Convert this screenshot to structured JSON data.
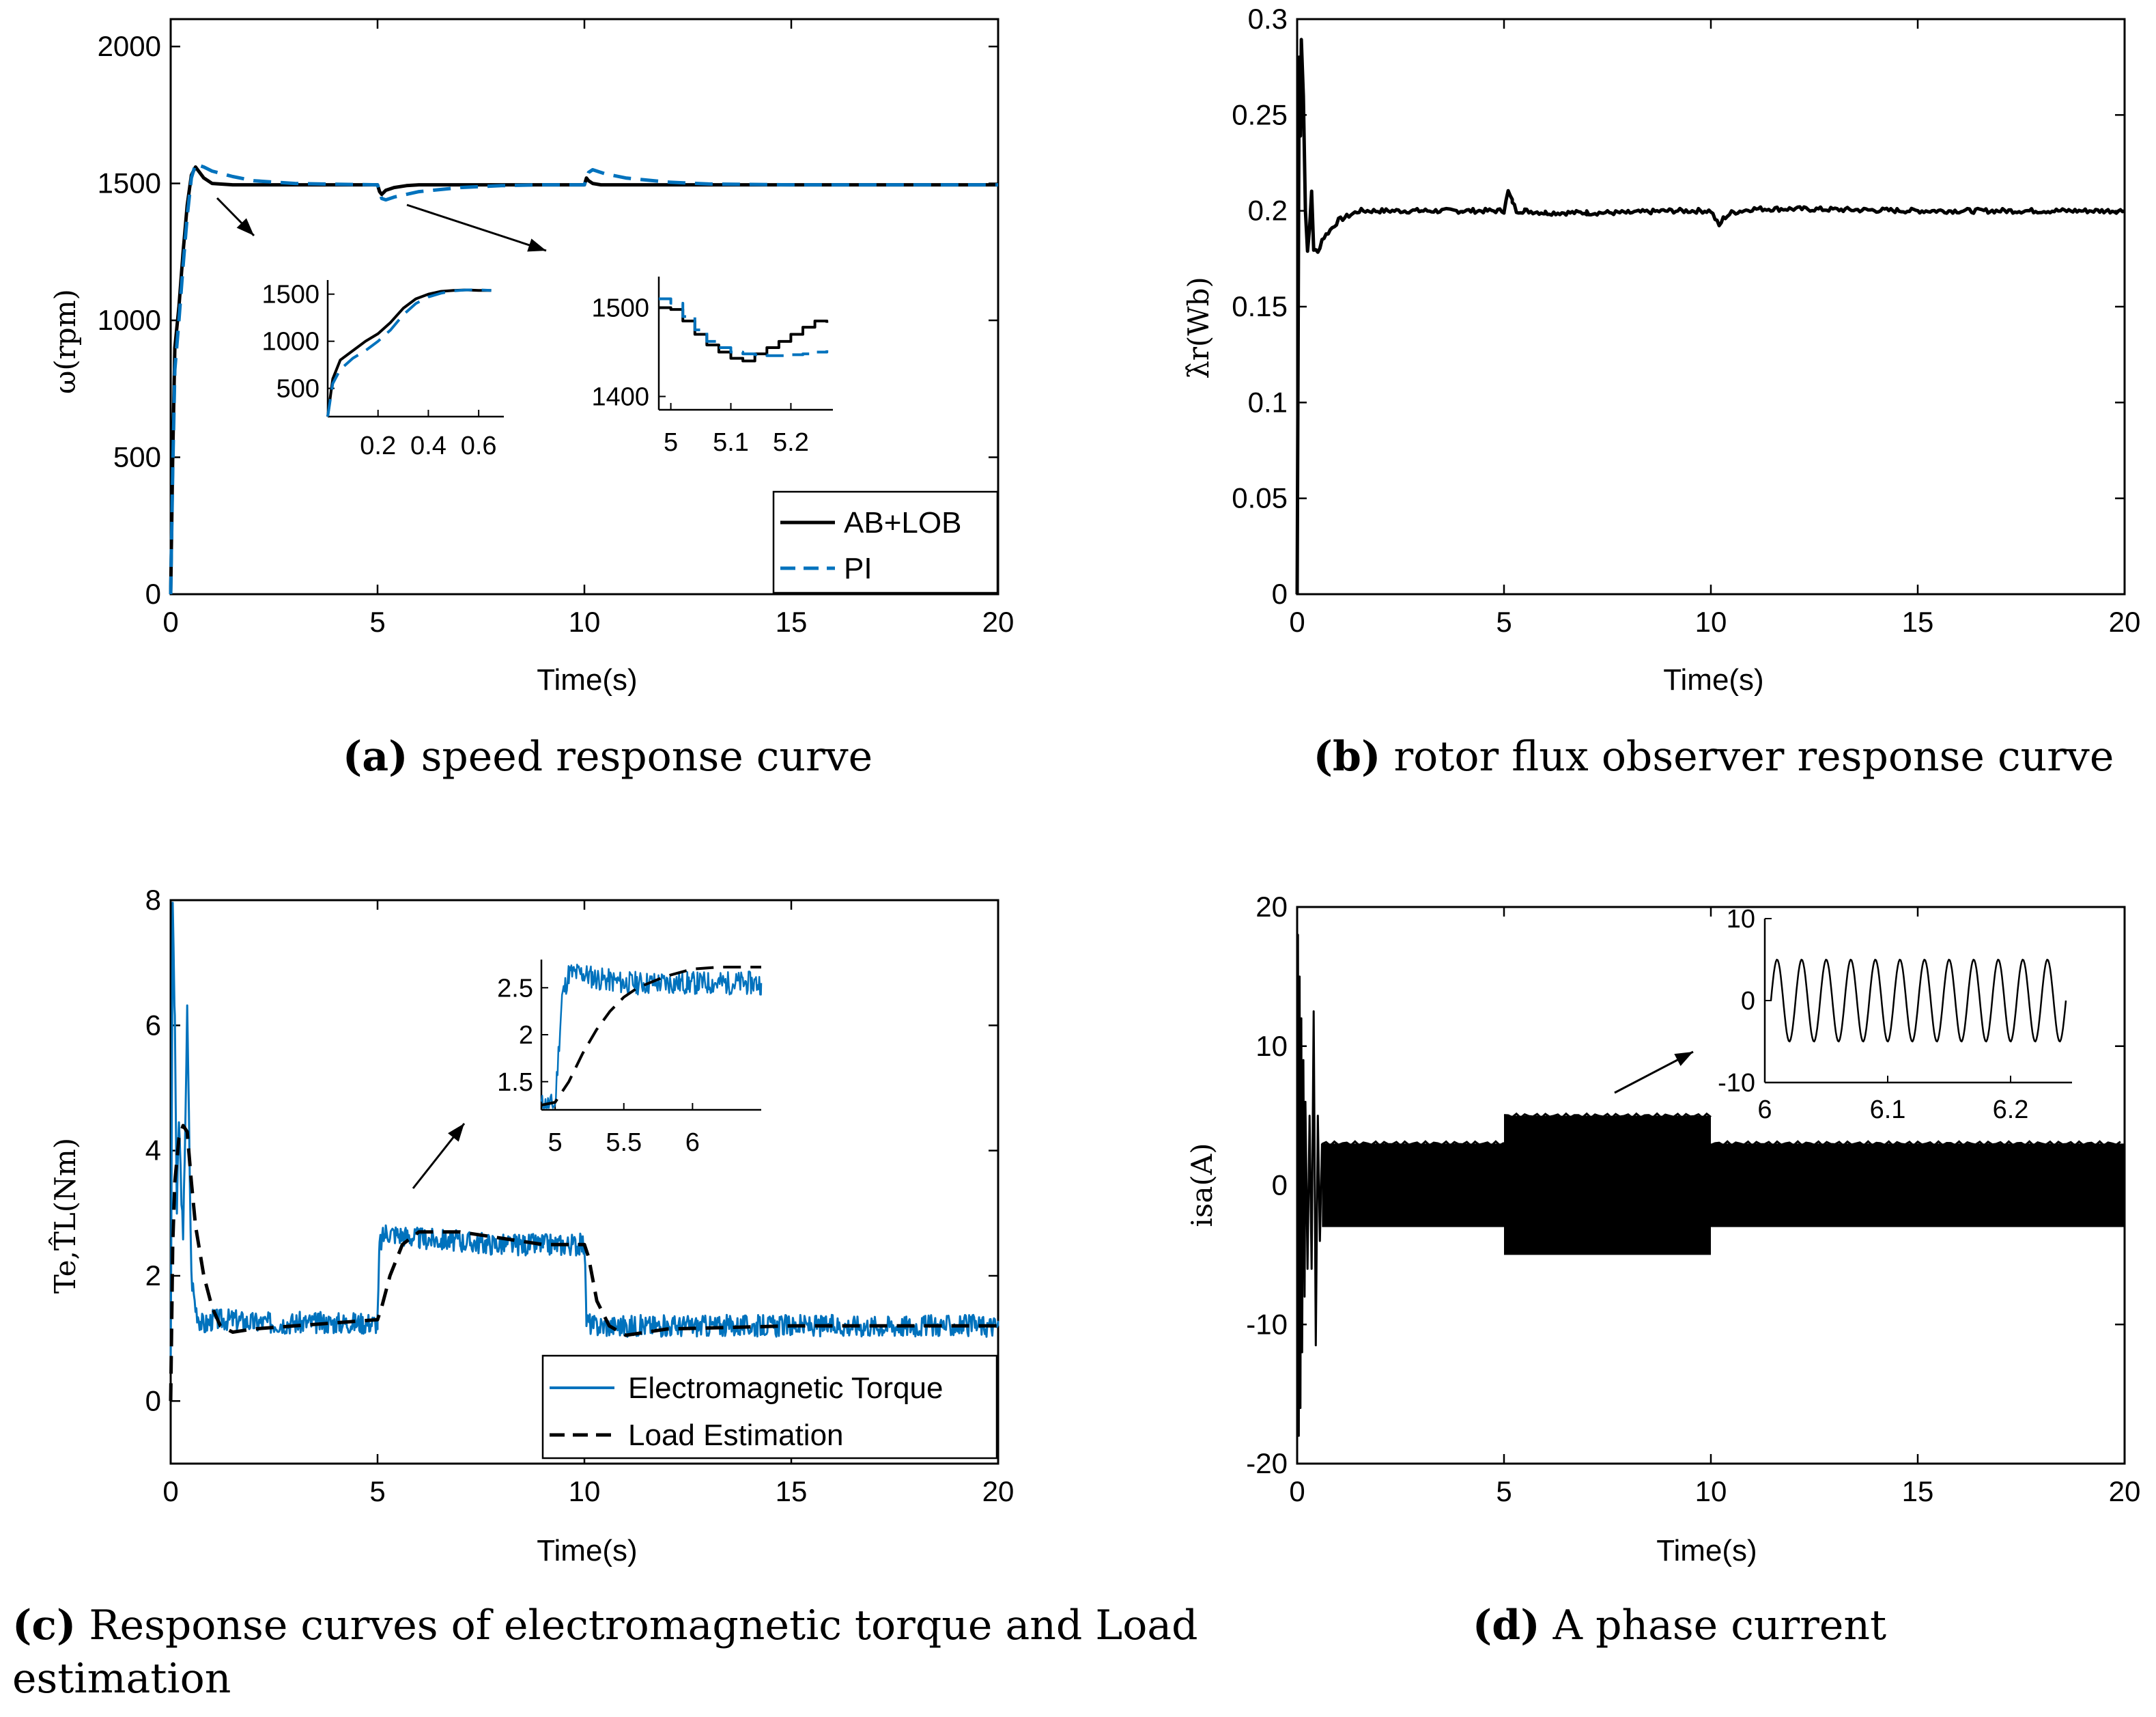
{
  "colors": {
    "black": "#000000",
    "blue": "#0072bd"
  },
  "chart_data": [
    {
      "id": "a",
      "type": "line",
      "caption_letter": "(a)",
      "caption": " speed response curve",
      "xlabel": "Time(s)",
      "ylabel": "ω(rpm)",
      "xlim": [
        0,
        20
      ],
      "ylim": [
        0,
        2100
      ],
      "xticks": [
        "0",
        "5",
        "10",
        "15",
        "20"
      ],
      "yticks": [
        "0",
        "500",
        "1000",
        "1500",
        "2000"
      ],
      "series": [
        {
          "name": "AB+LOB",
          "color": "#000000",
          "dash": "solid",
          "x": [
            0,
            0.05,
            0.1,
            0.2,
            0.3,
            0.4,
            0.5,
            0.6,
            0.8,
            1,
            1.5,
            2,
            3,
            4,
            5,
            5.05,
            5.1,
            5.2,
            5.4,
            5.7,
            6,
            7,
            8,
            10,
            10.05,
            10.1,
            10.2,
            10.4,
            10.7,
            11,
            12,
            15,
            20
          ],
          "y": [
            0,
            500,
            900,
            1050,
            1250,
            1420,
            1530,
            1560,
            1520,
            1500,
            1495,
            1495,
            1495,
            1495,
            1495,
            1470,
            1460,
            1475,
            1485,
            1492,
            1495,
            1495,
            1495,
            1495,
            1520,
            1510,
            1500,
            1495,
            1495,
            1495,
            1495,
            1495,
            1495
          ]
        },
        {
          "name": "PI",
          "color": "#0072bd",
          "dash": "dashed",
          "x": [
            0,
            0.05,
            0.1,
            0.2,
            0.3,
            0.4,
            0.5,
            0.6,
            0.8,
            1,
            1.5,
            2,
            3,
            4,
            5,
            5.1,
            5.2,
            5.4,
            6,
            7,
            8,
            9,
            10,
            10.1,
            10.2,
            10.5,
            11,
            12,
            13,
            15,
            20
          ],
          "y": [
            0,
            450,
            820,
            1000,
            1200,
            1380,
            1520,
            1570,
            1560,
            1545,
            1525,
            1510,
            1500,
            1497,
            1495,
            1445,
            1440,
            1450,
            1470,
            1485,
            1492,
            1495,
            1495,
            1540,
            1550,
            1535,
            1520,
            1505,
            1498,
            1495,
            1495
          ]
        }
      ],
      "inset1": {
        "xlim": [
          0,
          0.7
        ],
        "ylim": [
          200,
          1650
        ],
        "xticks": [
          "0.2",
          "0.4",
          "0.6"
        ],
        "yticks": [
          "500",
          "1000",
          "1500"
        ],
        "series": [
          {
            "name": "AB+LOB",
            "x": [
              0,
              0.02,
              0.05,
              0.1,
              0.15,
              0.2,
              0.25,
              0.3,
              0.35,
              0.4,
              0.45,
              0.5,
              0.55,
              0.6,
              0.65
            ],
            "y": [
              200,
              600,
              800,
              900,
              1000,
              1080,
              1200,
              1350,
              1450,
              1500,
              1530,
              1540,
              1545,
              1540,
              1540
            ]
          },
          {
            "name": "PI",
            "x": [
              0,
              0.02,
              0.05,
              0.1,
              0.15,
              0.2,
              0.25,
              0.3,
              0.35,
              0.4,
              0.45,
              0.5,
              0.55,
              0.6,
              0.65
            ],
            "y": [
              200,
              550,
              700,
              820,
              900,
              1000,
              1120,
              1280,
              1400,
              1470,
              1510,
              1535,
              1545,
              1545,
              1540
            ]
          }
        ]
      },
      "inset2": {
        "xlim": [
          4.98,
          5.27
        ],
        "ylim": [
          1385,
          1535
        ],
        "xticks": [
          "5",
          "5.1",
          "5.2"
        ],
        "yticks": [
          "1400",
          "1500"
        ],
        "series": [
          {
            "name": "AB+LOB",
            "x": [
              4.98,
              5,
              5.02,
              5.04,
              5.06,
              5.08,
              5.1,
              5.12,
              5.14,
              5.16,
              5.18,
              5.2,
              5.22,
              5.24,
              5.26
            ],
            "y": [
              1500,
              1498,
              1485,
              1470,
              1458,
              1450,
              1443,
              1440,
              1448,
              1455,
              1462,
              1470,
              1478,
              1485,
              1483
            ]
          },
          {
            "name": "PI",
            "x": [
              4.98,
              5,
              5.02,
              5.04,
              5.06,
              5.08,
              5.1,
              5.12,
              5.14,
              5.16,
              5.18,
              5.2,
              5.22,
              5.24,
              5.26
            ],
            "y": [
              1510,
              1505,
              1490,
              1475,
              1462,
              1455,
              1450,
              1448,
              1447,
              1446,
              1446,
              1447,
              1448,
              1450,
              1452
            ]
          }
        ]
      },
      "legend": [
        "AB+LOB",
        "PI"
      ]
    },
    {
      "id": "b",
      "type": "line",
      "caption_letter": "(b)",
      "caption": " rotor flux observer response curve",
      "xlabel": "Time(s)",
      "ylabel": "λ̂r(Wb)",
      "xlim": [
        0,
        20
      ],
      "ylim": [
        0,
        0.3
      ],
      "xticks": [
        "0",
        "5",
        "10",
        "15",
        "20"
      ],
      "yticks": [
        "0",
        "0.05",
        "0.1",
        "0.15",
        "0.2",
        "0.25",
        "0.3"
      ],
      "series": [
        {
          "name": "rotor flux",
          "color": "#000000",
          "x": [
            0,
            0.05,
            0.08,
            0.1,
            0.15,
            0.2,
            0.25,
            0.3,
            0.35,
            0.4,
            0.5,
            0.6,
            0.8,
            1,
            1.5,
            2,
            3,
            4,
            5,
            5.1,
            5.2,
            5.3,
            5.5,
            6,
            7,
            8,
            9,
            10,
            10.1,
            10.2,
            10.3,
            10.5,
            11,
            12,
            15,
            20
          ],
          "y": [
            0,
            0.28,
            0.24,
            0.29,
            0.26,
            0.2,
            0.18,
            0.19,
            0.21,
            0.18,
            0.178,
            0.185,
            0.19,
            0.195,
            0.2,
            0.2,
            0.2,
            0.2,
            0.2,
            0.21,
            0.205,
            0.2,
            0.2,
            0.199,
            0.199,
            0.199,
            0.2,
            0.2,
            0.196,
            0.192,
            0.196,
            0.199,
            0.201,
            0.201,
            0.2,
            0.2
          ]
        }
      ]
    },
    {
      "id": "c",
      "type": "line",
      "caption_letter": "(c)",
      "caption": " Response curves of electromagnetic torque and Load estimation",
      "xlabel": "Time(s)",
      "ylabel": "Te,T̂L(Nm)",
      "xlim": [
        0,
        20
      ],
      "ylim": [
        -1,
        8
      ],
      "xticks": [
        "0",
        "5",
        "10",
        "15",
        "20"
      ],
      "yticks": [
        "0",
        "2",
        "4",
        "6",
        "8"
      ],
      "series": [
        {
          "name": "Electromagnetic Torque",
          "color": "#0072bd",
          "dash": "solid",
          "x": [
            0,
            0.05,
            0.1,
            0.15,
            0.2,
            0.3,
            0.4,
            0.5,
            0.6,
            0.7,
            0.8,
            1,
            1.5,
            2,
            3,
            4,
            5,
            5.05,
            5.2,
            6,
            7,
            8,
            9,
            10,
            10.05,
            10.2,
            11,
            12,
            15,
            20
          ],
          "y": [
            0.5,
            8,
            6,
            3,
            4.5,
            2.5,
            6.2,
            2,
            1.5,
            1.3,
            1.2,
            1.3,
            1.3,
            1.25,
            1.25,
            1.25,
            1.25,
            2.5,
            2.7,
            2.6,
            2.55,
            2.5,
            2.5,
            2.5,
            1.3,
            1.2,
            1.2,
            1.2,
            1.2,
            1.2
          ]
        },
        {
          "name": "Load Estimation",
          "color": "#000000",
          "dash": "dashed",
          "x": [
            0,
            0.05,
            0.1,
            0.2,
            0.3,
            0.4,
            0.5,
            0.6,
            0.8,
            1,
            1.2,
            1.5,
            2,
            3,
            4,
            5,
            5.1,
            5.3,
            5.6,
            6,
            7,
            8,
            9,
            10,
            10.1,
            10.3,
            10.6,
            11,
            12,
            15,
            20
          ],
          "y": [
            0,
            2.5,
            3.5,
            4.2,
            4.4,
            4.3,
            3.5,
            2.8,
            2,
            1.5,
            1.2,
            1.1,
            1.15,
            1.2,
            1.25,
            1.3,
            1.5,
            2,
            2.5,
            2.7,
            2.7,
            2.6,
            2.5,
            2.5,
            2.3,
            1.6,
            1.2,
            1.05,
            1.15,
            1.2,
            1.2
          ]
        }
      ],
      "inset": {
        "xlim": [
          4.9,
          6.5
        ],
        "ylim": [
          1.2,
          2.8
        ],
        "xticks": [
          "5",
          "5.5",
          "6"
        ],
        "yticks": [
          "1.5",
          "2",
          "2.5"
        ],
        "series": [
          {
            "name": "Electromagnetic Torque",
            "x": [
              4.9,
              5,
              5.05,
              5.1,
              5.2,
              5.3,
              5.5,
              6,
              6.5
            ],
            "y": [
              1.25,
              1.25,
              2.4,
              2.65,
              2.65,
              2.6,
              2.55,
              2.55,
              2.55
            ]
          },
          {
            "name": "Load Estimation",
            "x": [
              4.9,
              5,
              5.1,
              5.2,
              5.3,
              5.4,
              5.5,
              5.6,
              5.8,
              6,
              6.2,
              6.5
            ],
            "y": [
              1.25,
              1.28,
              1.5,
              1.8,
              2.05,
              2.25,
              2.4,
              2.5,
              2.62,
              2.7,
              2.72,
              2.72
            ]
          }
        ]
      },
      "legend": [
        "Electromagnetic Torque",
        "Load Estimation"
      ]
    },
    {
      "id": "d",
      "type": "line",
      "caption_letter": "(d)",
      "caption": " A phase current",
      "xlabel": "Time(s)",
      "ylabel": "isa(A)",
      "xlim": [
        0,
        20
      ],
      "ylim": [
        -20,
        20
      ],
      "xticks": [
        "0",
        "5",
        "10",
        "15",
        "20"
      ],
      "yticks": [
        "-20",
        "-10",
        "0",
        "10",
        "20"
      ],
      "series": [
        {
          "name": "isa",
          "color": "#000000",
          "envelope_amplitude": [
            {
              "from": 0,
              "to": 0.6,
              "amp": "transient"
            },
            {
              "from": 0.6,
              "to": 5,
              "amp": 3
            },
            {
              "from": 5,
              "to": 10,
              "amp": 5
            },
            {
              "from": 10,
              "to": 20,
              "amp": 3
            }
          ]
        }
      ],
      "inset": {
        "xlim": [
          6,
          6.25
        ],
        "ylim": [
          -10,
          10
        ],
        "xticks": [
          "6",
          "6.1",
          "6.2"
        ],
        "yticks": [
          "-10",
          "0",
          "10"
        ],
        "series": [
          {
            "name": "isa",
            "amplitude": 5,
            "frequency_hz": 50
          }
        ]
      }
    }
  ]
}
